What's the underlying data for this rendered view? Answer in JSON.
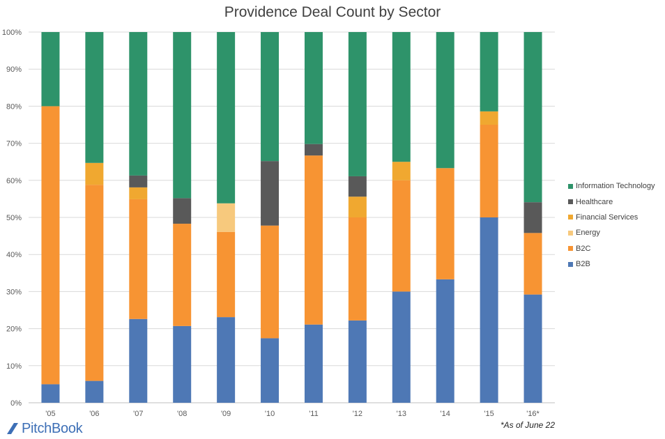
{
  "title": "Providence Deal Count by Sector",
  "footnote": "*As of June 22",
  "brand": {
    "name": "PitchBook",
    "color": "#3d6fb6"
  },
  "chart_data": {
    "type": "bar",
    "stacked": true,
    "percent": true,
    "title": "Providence Deal Count by Sector",
    "xlabel": "",
    "ylabel": "",
    "ylim": [
      0,
      100
    ],
    "yticks": [
      "0%",
      "10%",
      "20%",
      "30%",
      "40%",
      "50%",
      "60%",
      "70%",
      "80%",
      "90%",
      "100%"
    ],
    "grid": true,
    "legend": "right",
    "categories": [
      "'05",
      "'06",
      "'07",
      "'08",
      "'09",
      "'10",
      "'11",
      "'12",
      "'13",
      "'14",
      "'15",
      "'16*"
    ],
    "series": [
      {
        "name": "B2B",
        "color": "#4e78b5",
        "values": [
          5,
          5.9,
          22.6,
          20.7,
          23.1,
          17.4,
          21.1,
          22.2,
          30,
          33.3,
          50,
          29.2
        ]
      },
      {
        "name": "B2C",
        "color": "#f79433",
        "values": [
          75,
          52.9,
          32.3,
          27.6,
          23,
          30.4,
          45.6,
          27.8,
          30,
          30,
          25,
          16.6
        ]
      },
      {
        "name": "Energy",
        "color": "#f7c97d",
        "values": [
          0,
          0,
          0,
          0,
          7.7,
          0,
          0,
          0,
          0,
          0,
          0,
          0
        ]
      },
      {
        "name": "Financial Services",
        "color": "#f0a830",
        "values": [
          0,
          5.9,
          3.2,
          0,
          0,
          0,
          0,
          5.6,
          5,
          0,
          3.6,
          0
        ]
      },
      {
        "name": "Healthcare",
        "color": "#595959",
        "values": [
          0,
          0,
          3.2,
          6.9,
          0,
          17.4,
          3.1,
          5.5,
          0,
          0,
          0,
          8.3
        ]
      },
      {
        "name": "Information Technology",
        "color": "#2e936a",
        "values": [
          20,
          35.3,
          38.7,
          44.8,
          46.2,
          34.8,
          30.2,
          38.9,
          35,
          36.7,
          21.4,
          45.9
        ]
      }
    ]
  }
}
